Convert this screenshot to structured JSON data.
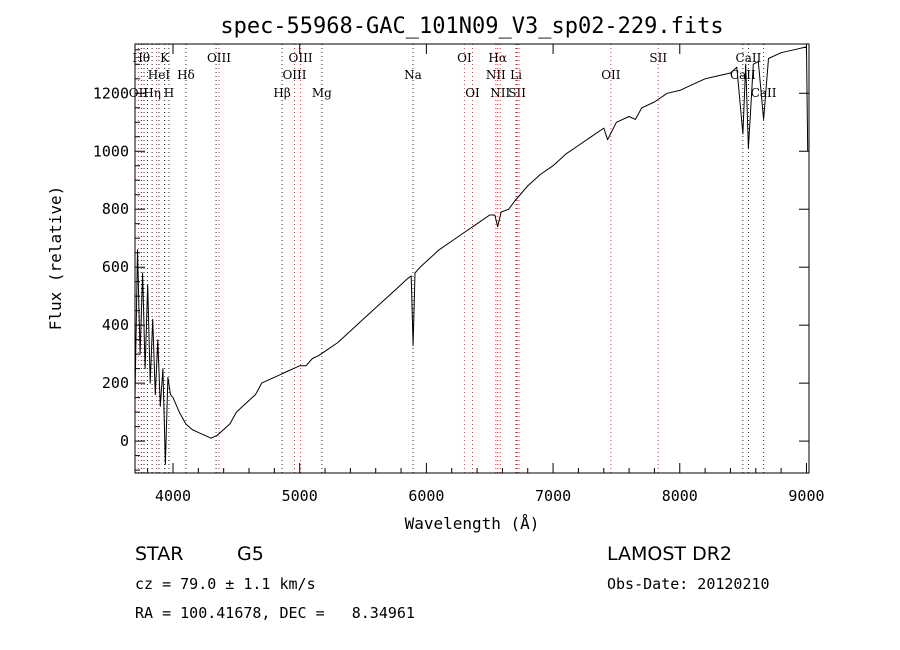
{
  "chart_data": {
    "type": "line",
    "title": "spec-55968-GAC_101N09_V3_sp02-229.fits",
    "xlabel": "Wavelength (Å)",
    "ylabel": "Flux (relative)",
    "xlim": [
      3700,
      9020
    ],
    "ylim": [
      -110,
      1370
    ],
    "xticks": [
      4000,
      5000,
      6000,
      7000,
      8000,
      9000
    ],
    "yticks": [
      0,
      200,
      400,
      600,
      800,
      1000,
      1200
    ],
    "grid": false,
    "series": [
      {
        "x": [
          3700,
          3720,
          3740,
          3760,
          3780,
          3800,
          3820,
          3840,
          3860,
          3880,
          3900,
          3920,
          3940,
          3960,
          3980,
          4000,
          4050,
          4100,
          4150,
          4200,
          4250,
          4300,
          4350,
          4400,
          4450,
          4500,
          4550,
          4600,
          4650,
          4700,
          4750,
          4800,
          4850,
          4900,
          4950,
          5000,
          5050,
          5100,
          5150,
          5200,
          5300,
          5400,
          5500,
          5600,
          5700,
          5800,
          5850,
          5880,
          5895,
          5910,
          5950,
          6000,
          6100,
          6200,
          6300,
          6400,
          6500,
          6540,
          6563,
          6590,
          6650,
          6700,
          6800,
          6900,
          7000,
          7100,
          7200,
          7300,
          7400,
          7430,
          7500,
          7600,
          7650,
          7700,
          7800,
          7900,
          8000,
          8100,
          8200,
          8300,
          8400,
          8450,
          8498,
          8520,
          8542,
          8580,
          8620,
          8662,
          8700,
          8800,
          8900,
          9000,
          9010
        ],
        "y": [
          150,
          660,
          300,
          580,
          250,
          540,
          200,
          420,
          160,
          350,
          120,
          250,
          -80,
          220,
          160,
          150,
          100,
          60,
          40,
          30,
          20,
          10,
          20,
          40,
          60,
          100,
          120,
          140,
          160,
          200,
          210,
          220,
          230,
          240,
          250,
          260,
          260,
          285,
          295,
          310,
          340,
          380,
          420,
          460,
          500,
          540,
          560,
          570,
          330,
          580,
          600,
          620,
          660,
          690,
          720,
          750,
          780,
          780,
          740,
          790,
          800,
          830,
          880,
          920,
          950,
          990,
          1020,
          1050,
          1080,
          1040,
          1100,
          1120,
          1110,
          1150,
          1170,
          1200,
          1210,
          1230,
          1250,
          1260,
          1270,
          1290,
          1060,
          1300,
          1010,
          1300,
          1310,
          1110,
          1320,
          1340,
          1350,
          1360,
          1000
        ]
      }
    ]
  },
  "line_markers": {
    "emission_color": "#ff0000",
    "absorption_color": "#000000",
    "lines": [
      {
        "x": 3727,
        "type": "emission",
        "label": "OII",
        "row": 3
      },
      {
        "x": 3750,
        "type": "absorption",
        "label": "Hθ",
        "row": 1
      },
      {
        "x": 3771,
        "type": "absorption",
        "label": "",
        "row": 0
      },
      {
        "x": 3798,
        "type": "absorption",
        "label": "",
        "row": 0
      },
      {
        "x": 3835,
        "type": "absorption",
        "label": "Hη",
        "row": 3
      },
      {
        "x": 3869,
        "type": "emission",
        "label": "",
        "row": 0
      },
      {
        "x": 3889,
        "type": "absorption",
        "label": "HeI",
        "row": 2
      },
      {
        "x": 3934,
        "type": "absorption",
        "label": "K",
        "row": 1
      },
      {
        "x": 3968,
        "type": "absorption",
        "label": "H",
        "row": 3
      },
      {
        "x": 4102,
        "type": "absorption",
        "label": "Hδ",
        "row": 2
      },
      {
        "x": 4340,
        "type": "absorption",
        "label": "",
        "row": 0
      },
      {
        "x": 4363,
        "type": "emission",
        "label": "OIII",
        "row": 1
      },
      {
        "x": 4861,
        "type": "absorption",
        "label": "Hβ",
        "row": 3
      },
      {
        "x": 4959,
        "type": "emission",
        "label": "OIII",
        "row": 2
      },
      {
        "x": 5007,
        "type": "emission",
        "label": "OIII",
        "row": 1
      },
      {
        "x": 5175,
        "type": "absorption",
        "label": "Mg",
        "row": 3
      },
      {
        "x": 5894,
        "type": "absorption",
        "label": "Na",
        "row": 2
      },
      {
        "x": 6300,
        "type": "emission",
        "label": "OI",
        "row": 1
      },
      {
        "x": 6364,
        "type": "emission",
        "label": "OI",
        "row": 3
      },
      {
        "x": 6548,
        "type": "emission",
        "label": "NII",
        "row": 2
      },
      {
        "x": 6563,
        "type": "emission",
        "label": "Hα",
        "row": 1
      },
      {
        "x": 6583,
        "type": "emission",
        "label": "NII",
        "row": 3
      },
      {
        "x": 6708,
        "type": "absorption",
        "label": "Li",
        "row": 2
      },
      {
        "x": 6716,
        "type": "emission",
        "label": "SII",
        "row": 3
      },
      {
        "x": 6731,
        "type": "emission",
        "label": "",
        "row": 0
      },
      {
        "x": 7456,
        "type": "emission",
        "label": "OII",
        "row": 2
      },
      {
        "x": 7830,
        "type": "emission",
        "label": "SII",
        "row": 1
      },
      {
        "x": 8498,
        "type": "absorption",
        "label": "CaII",
        "row": 2
      },
      {
        "x": 8542,
        "type": "absorption",
        "label": "CaII",
        "row": 1
      },
      {
        "x": 8662,
        "type": "absorption",
        "label": "CaII",
        "row": 3
      }
    ]
  },
  "info": {
    "object_class": "STAR",
    "subclass": "G5",
    "survey": "LAMOST DR2",
    "cz": "cz = 79.0 ± 1.1 km/s",
    "obs_date": "Obs-Date: 20120210",
    "radec": "RA = 100.41678, DEC =   8.34961"
  }
}
